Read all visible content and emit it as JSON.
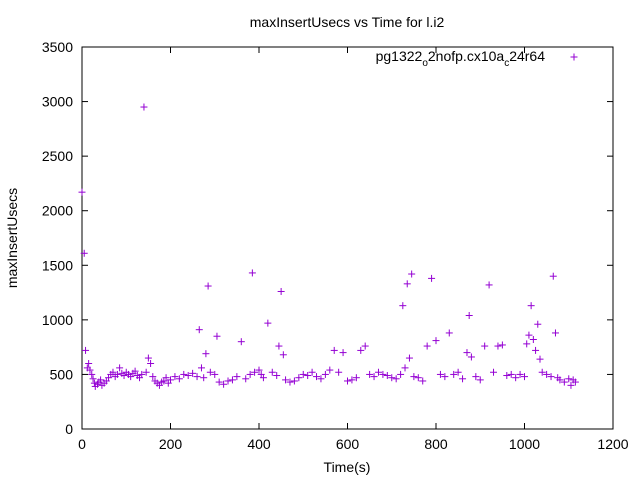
{
  "chart_data": {
    "type": "scatter",
    "title": "maxInsertUsecs vs Time for l.i2",
    "xlabel": "Time(s)",
    "ylabel": "maxInsertUsecs",
    "xlim": [
      0,
      1200
    ],
    "ylim": [
      0,
      3500
    ],
    "xticks": [
      0,
      200,
      400,
      600,
      800,
      1000,
      1200
    ],
    "yticks": [
      0,
      500,
      1000,
      1500,
      2000,
      2500,
      3000,
      3500
    ],
    "grid": false,
    "legend_position": "top-right",
    "series": [
      {
        "name": "pg1322",
        "name_sub1": "o",
        "name_mid": "2nofp.cx10a",
        "name_sub2": "c",
        "name_end": "24r64",
        "color": "#9400d3",
        "marker": "+",
        "x": [
          0,
          5,
          8,
          12,
          15,
          18,
          22,
          25,
          28,
          30,
          35,
          38,
          42,
          45,
          50,
          55,
          60,
          65,
          70,
          75,
          80,
          85,
          90,
          95,
          100,
          105,
          110,
          115,
          120,
          125,
          130,
          135,
          140,
          145,
          150,
          155,
          160,
          165,
          170,
          175,
          180,
          185,
          190,
          195,
          200,
          210,
          220,
          230,
          240,
          250,
          260,
          265,
          270,
          275,
          280,
          285,
          290,
          300,
          305,
          310,
          320,
          330,
          340,
          350,
          360,
          370,
          380,
          385,
          390,
          400,
          405,
          410,
          420,
          430,
          440,
          445,
          450,
          455,
          460,
          470,
          480,
          490,
          500,
          510,
          520,
          530,
          540,
          550,
          560,
          570,
          580,
          590,
          600,
          610,
          620,
          630,
          640,
          650,
          660,
          670,
          680,
          690,
          700,
          710,
          720,
          725,
          730,
          735,
          740,
          745,
          750,
          760,
          770,
          780,
          790,
          800,
          810,
          820,
          830,
          840,
          850,
          860,
          870,
          875,
          880,
          890,
          900,
          910,
          920,
          930,
          940,
          950,
          960,
          970,
          980,
          990,
          1000,
          1005,
          1010,
          1015,
          1020,
          1025,
          1030,
          1035,
          1040,
          1050,
          1060,
          1065,
          1070,
          1075,
          1080,
          1090,
          1100,
          1105,
          1110,
          1115
        ],
        "y": [
          2170,
          1610,
          720,
          560,
          600,
          540,
          500,
          460,
          420,
          390,
          410,
          430,
          450,
          400,
          420,
          440,
          470,
          500,
          520,
          480,
          500,
          560,
          510,
          490,
          520,
          500,
          480,
          510,
          530,
          490,
          470,
          500,
          2950,
          520,
          650,
          600,
          480,
          440,
          420,
          400,
          430,
          440,
          470,
          420,
          450,
          480,
          460,
          500,
          490,
          510,
          480,
          910,
          560,
          470,
          690,
          1310,
          520,
          500,
          850,
          430,
          410,
          440,
          450,
          480,
          800,
          460,
          500,
          1430,
          520,
          540,
          500,
          470,
          970,
          520,
          490,
          760,
          1260,
          680,
          450,
          430,
          440,
          470,
          500,
          490,
          520,
          480,
          460,
          500,
          540,
          720,
          520,
          700,
          440,
          450,
          470,
          720,
          760,
          500,
          480,
          520,
          500,
          490,
          470,
          460,
          500,
          1130,
          560,
          1330,
          650,
          1420,
          480,
          470,
          440,
          760,
          1380,
          810,
          500,
          480,
          880,
          500,
          520,
          460,
          700,
          1040,
          660,
          480,
          450,
          760,
          1320,
          520,
          760,
          770,
          490,
          500,
          470,
          500,
          480,
          780,
          860,
          1130,
          820,
          720,
          960,
          640,
          520,
          500,
          480,
          1400,
          880,
          470,
          450,
          430,
          460,
          400,
          450,
          430
        ],
        "notes": "approximate sample of a dense point cloud; most points lie between 350 and 600"
      }
    ],
    "annotations": []
  }
}
